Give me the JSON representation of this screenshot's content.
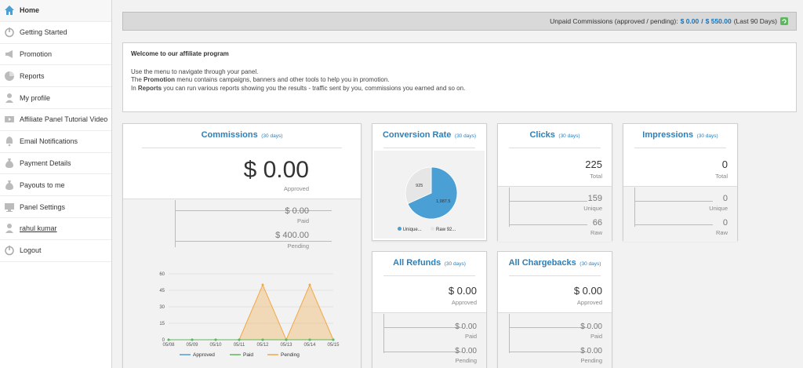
{
  "sidebar": {
    "items": [
      {
        "label": "Home",
        "icon": "home-icon"
      },
      {
        "label": "Getting Started",
        "icon": "power-icon"
      },
      {
        "label": "Promotion",
        "icon": "megaphone-icon"
      },
      {
        "label": "Reports",
        "icon": "chart-pie-icon"
      },
      {
        "label": "My profile",
        "icon": "user-icon"
      },
      {
        "label": "Affiliate Panel Tutorial Video",
        "icon": "video-icon"
      },
      {
        "label": "Email Notifications",
        "icon": "bell-icon"
      },
      {
        "label": "Payment Details",
        "icon": "money-bag-icon"
      },
      {
        "label": "Payouts to me",
        "icon": "payout-icon"
      },
      {
        "label": "Panel Settings",
        "icon": "monitor-icon"
      },
      {
        "label": "rahul kumar",
        "icon": "user-icon"
      },
      {
        "label": "Logout",
        "icon": "power-icon"
      }
    ]
  },
  "topbar": {
    "prefix": "Unpaid Commissions (approved / pending):",
    "approved": "$ 0.00",
    "sep": "/",
    "pending": "$ 550.00",
    "suffix": "(Last 90 Days)"
  },
  "welcome": {
    "title": "Welcome to our affiliate program",
    "line1": "Use the menu to navigate through your panel.",
    "line2_pre": "The ",
    "line2_bold": "Promotion",
    "line2_post": " menu contains campaigns, banners and other tools to help you in promotion.",
    "line3_pre": "In ",
    "line3_bold": "Reports",
    "line3_post": " you can run various reports showing you the results - traffic sent by you, commissions you earned and so on."
  },
  "commissions": {
    "title": "Commissions",
    "period": "(30 days)",
    "total": "$ 0.00",
    "total_label": "Approved",
    "paid": "$ 0.00",
    "paid_label": "Paid",
    "pending": "$ 400.00",
    "pending_label": "Pending"
  },
  "conversion": {
    "title": "Conversion Rate",
    "period": "(30 days)",
    "legend_unique": "Unique...",
    "legend_raw": "Raw 92..."
  },
  "clicks": {
    "title": "Clicks",
    "period": "(30 days)",
    "total": "225",
    "total_label": "Total",
    "unique": "159",
    "unique_label": "Unique",
    "raw": "66",
    "raw_label": "Raw"
  },
  "impressions": {
    "title": "Impressions",
    "period": "(30 days)",
    "total": "0",
    "total_label": "Total",
    "unique": "0",
    "unique_label": "Unique",
    "raw": "0",
    "raw_label": "Raw"
  },
  "refunds": {
    "title": "All Refunds",
    "period": "(30 days)",
    "total": "$ 0.00",
    "total_label": "Approved",
    "paid": "$ 0.00",
    "paid_label": "Paid",
    "pending": "$ 0.00",
    "pending_label": "Pending"
  },
  "chargebacks": {
    "title": "All Chargebacks",
    "period": "(30 days)",
    "total": "$ 0.00",
    "total_label": "Approved",
    "paid": "$ 0.00",
    "paid_label": "Paid",
    "pending": "$ 0.00",
    "pending_label": "Pending"
  },
  "chart_data": [
    {
      "type": "line",
      "x": [
        "05/08",
        "05/09",
        "05/10",
        "05/11",
        "05/12",
        "05/13",
        "05/14",
        "05/15"
      ],
      "ylim": [
        0,
        60
      ],
      "yticks": [
        "0",
        "15",
        "30",
        "45",
        "60"
      ],
      "series": [
        {
          "name": "Approved",
          "values": [
            0,
            0,
            0,
            0,
            0,
            0,
            0,
            0
          ],
          "color": "#4a9fd4"
        },
        {
          "name": "Paid",
          "values": [
            0,
            0,
            0,
            0,
            0,
            0,
            0,
            0
          ],
          "color": "#5cb85c"
        },
        {
          "name": "Pending",
          "values": [
            0,
            0,
            0,
            0,
            50,
            0,
            50,
            0
          ],
          "color": "#f0a848"
        }
      ],
      "legend": "bottom"
    },
    {
      "type": "pie",
      "slices": [
        {
          "label": "1,987.5",
          "value": 1987.5,
          "color": "#4a9fd4"
        },
        {
          "label": "925",
          "value": 925,
          "color": "#e6e6e6"
        }
      ]
    }
  ]
}
